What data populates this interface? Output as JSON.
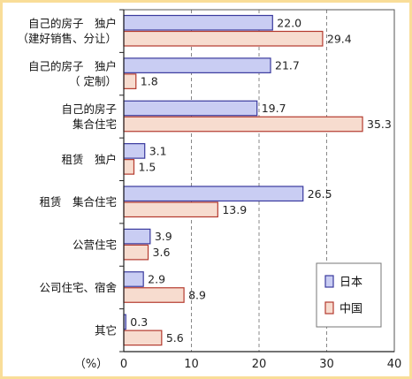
{
  "chart_data": {
    "type": "bar",
    "orientation": "horizontal",
    "categories": [
      [
        "自己的房子　独户",
        "（建好销售、分让）"
      ],
      [
        "自己的房子　独户",
        "（ 定制）"
      ],
      [
        "自己的房子",
        "集合住宅"
      ],
      [
        "租赁　独户"
      ],
      [
        "租赁　集合住宅"
      ],
      [
        "公营住宅"
      ],
      [
        "公司住宅、宿舍"
      ],
      [
        "其它"
      ]
    ],
    "series": [
      {
        "name": "日本",
        "values": [
          22.0,
          21.7,
          19.7,
          3.1,
          26.5,
          3.9,
          2.9,
          0.3
        ],
        "labels": [
          "22.0",
          "21.7",
          "19.7",
          "3.1",
          "26.5",
          "3.9",
          "2.9",
          "0.3"
        ],
        "color": "#c9cdf3",
        "stroke": "#3a3a9e"
      },
      {
        "name": "中国",
        "values": [
          29.4,
          1.8,
          35.3,
          1.5,
          13.9,
          3.6,
          8.9,
          5.6
        ],
        "labels": [
          "29.4",
          "1.8",
          "35.3",
          "1.5",
          "13.9",
          "3.6",
          "8.9",
          "5.6"
        ],
        "color": "#f7dccf",
        "stroke": "#b43a2e"
      }
    ],
    "xlim": [
      0,
      40
    ],
    "xticks": [
      "0",
      "10",
      "20",
      "30",
      "40"
    ],
    "xunit": "（%）",
    "grid": true,
    "legend_position": "bottom-right",
    "colors": {
      "background": "#f9dd98",
      "grid": "#888888",
      "axis": "#222222"
    }
  }
}
